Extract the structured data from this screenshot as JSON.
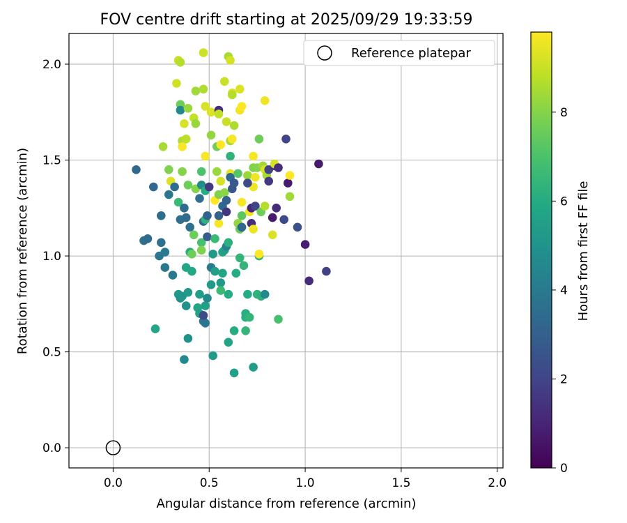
{
  "chart_data": {
    "type": "scatter",
    "title": "FOV centre drift starting at 2025/09/29 19:33:59",
    "xlabel": "Angular distance from reference (arcmin)",
    "ylabel": "Rotation from reference (arcmin)",
    "xlim": [
      -0.23,
      2.03
    ],
    "ylim": [
      -0.105,
      2.16
    ],
    "xticks": [
      0.0,
      0.5,
      1.0,
      1.5,
      2.0
    ],
    "xtick_labels": [
      "0.0",
      "0.5",
      "1.0",
      "1.5",
      "2.0"
    ],
    "yticks": [
      0.0,
      0.5,
      1.0,
      1.5,
      2.0
    ],
    "ytick_labels": [
      "0.0",
      "0.5",
      "1.0",
      "1.5",
      "2.0"
    ],
    "grid": true,
    "legend": {
      "position": "top-right",
      "entries": [
        "Reference platepar"
      ]
    },
    "reference_point": {
      "x": 0.0,
      "y": 0.0,
      "label": "Reference platepar"
    },
    "colorbar": {
      "label": "Hours from first FF file",
      "range": [
        0,
        9.8
      ],
      "ticks": [
        0,
        2,
        4,
        6,
        8
      ],
      "tick_labels": [
        "0",
        "2",
        "4",
        "6",
        "8"
      ],
      "colormap": "viridis"
    },
    "points_columns": [
      "x",
      "y",
      "hours"
    ],
    "points": [
      [
        0.12,
        1.45,
        3.3
      ],
      [
        0.16,
        1.08,
        3.6
      ],
      [
        0.18,
        1.09,
        3.4
      ],
      [
        0.22,
        0.62,
        5.8
      ],
      [
        0.21,
        1.36,
        3.3
      ],
      [
        0.24,
        1.0,
        3.8
      ],
      [
        0.25,
        1.07,
        3.7
      ],
      [
        0.25,
        1.21,
        3.5
      ],
      [
        0.26,
        1.57,
        8.5
      ],
      [
        0.27,
        0.94,
        3.9
      ],
      [
        0.27,
        1.02,
        4.0
      ],
      [
        0.29,
        1.32,
        3.8
      ],
      [
        0.29,
        1.45,
        7.9
      ],
      [
        0.3,
        1.39,
        9.3
      ],
      [
        0.31,
        0.9,
        3.9
      ],
      [
        0.32,
        1.36,
        3.5
      ],
      [
        0.33,
        1.9,
        9.1
      ],
      [
        0.34,
        2.02,
        9.0
      ],
      [
        0.35,
        2.01,
        8.7
      ],
      [
        0.35,
        1.79,
        7.6
      ],
      [
        0.35,
        1.76,
        4.6
      ],
      [
        0.34,
        1.28,
        6.6
      ],
      [
        0.35,
        1.19,
        3.6
      ],
      [
        0.36,
        1.44,
        8.0
      ],
      [
        0.36,
        1.6,
        8.6
      ],
      [
        0.36,
        1.57,
        9.7
      ],
      [
        0.37,
        1.69,
        9.2
      ],
      [
        0.38,
        1.61,
        8.8
      ],
      [
        0.37,
        1.25,
        3.4
      ],
      [
        0.38,
        1.2,
        3.4
      ],
      [
        0.34,
        0.8,
        5.2
      ],
      [
        0.35,
        0.78,
        4.9
      ],
      [
        0.36,
        0.79,
        5.1
      ],
      [
        0.37,
        0.46,
        4.6
      ],
      [
        0.38,
        0.94,
        5.8
      ],
      [
        0.38,
        0.74,
        4.9
      ],
      [
        0.39,
        0.57,
        4.9
      ],
      [
        0.39,
        0.81,
        5.3
      ],
      [
        0.39,
        1.77,
        8.3
      ],
      [
        0.39,
        1.37,
        7.6
      ],
      [
        0.4,
        1.15,
        3.6
      ],
      [
        0.4,
        1.02,
        6.0
      ],
      [
        0.41,
        1.01,
        7.6
      ],
      [
        0.42,
        1.11,
        7.6
      ],
      [
        0.41,
        0.92,
        5.9
      ],
      [
        0.42,
        1.72,
        8.9
      ],
      [
        0.43,
        1.69,
        8.3
      ],
      [
        0.43,
        1.86,
        8.4
      ],
      [
        0.43,
        1.35,
        8.0
      ],
      [
        0.44,
        0.73,
        5.8
      ],
      [
        0.45,
        0.7,
        5.6
      ],
      [
        0.45,
        0.8,
        5.4
      ],
      [
        0.45,
        1.3,
        3.6
      ],
      [
        0.46,
        1.37,
        4.7
      ],
      [
        0.46,
        1.07,
        6.9
      ],
      [
        0.46,
        1.03,
        7.9
      ],
      [
        0.46,
        1.44,
        7.0
      ],
      [
        0.47,
        2.06,
        9.1
      ],
      [
        0.47,
        1.18,
        3.3
      ],
      [
        0.48,
        1.19,
        6.3
      ],
      [
        0.47,
        1.87,
        8.6
      ],
      [
        0.48,
        1.78,
        9.2
      ],
      [
        0.48,
        1.52,
        9.7
      ],
      [
        0.48,
        1.34,
        6.0
      ],
      [
        0.49,
        1.1,
        2.8
      ],
      [
        0.49,
        1.21,
        3.1
      ],
      [
        0.48,
        0.74,
        5.5
      ],
      [
        0.47,
        0.66,
        3.9
      ],
      [
        0.48,
        0.65,
        3.8
      ],
      [
        0.47,
        0.69,
        2.2
      ],
      [
        0.49,
        0.78,
        4.6
      ],
      [
        0.5,
        1.36,
        1.6
      ],
      [
        0.51,
        1.63,
        8.2
      ],
      [
        0.51,
        1.75,
        9.3
      ],
      [
        0.51,
        0.94,
        4.0
      ],
      [
        0.51,
        0.85,
        5.3
      ],
      [
        0.52,
        0.48,
        5.3
      ],
      [
        0.52,
        1.01,
        5.3
      ],
      [
        0.53,
        1.09,
        6.6
      ],
      [
        0.53,
        1.29,
        9.8
      ],
      [
        0.54,
        1.57,
        7.6
      ],
      [
        0.54,
        1.44,
        8.3
      ],
      [
        0.55,
        1.17,
        9.7
      ],
      [
        0.55,
        1.21,
        3.0
      ],
      [
        0.55,
        1.76,
        1.3
      ],
      [
        0.55,
        1.74,
        8.9
      ],
      [
        0.56,
        1.58,
        9.8
      ],
      [
        0.55,
        1.32,
        7.9
      ],
      [
        0.56,
        1.39,
        9.2
      ],
      [
        0.56,
        0.86,
        5.3
      ],
      [
        0.57,
        0.91,
        5.7
      ],
      [
        0.57,
        1.02,
        5.7
      ],
      [
        0.58,
        1.03,
        5.5
      ],
      [
        0.57,
        1.26,
        3.3
      ],
      [
        0.58,
        1.91,
        9.0
      ],
      [
        0.58,
        1.33,
        8.1
      ],
      [
        0.59,
        1.23,
        1.5
      ],
      [
        0.59,
        1.29,
        3.0
      ],
      [
        0.59,
        1.7,
        9.0
      ],
      [
        0.59,
        1.05,
        4.3
      ],
      [
        0.6,
        0.55,
        5.7
      ],
      [
        0.6,
        0.8,
        6.0
      ],
      [
        0.6,
        1.07,
        6.2
      ],
      [
        0.6,
        2.04,
        8.5
      ],
      [
        0.61,
        2.02,
        9.2
      ],
      [
        0.61,
        1.43,
        9.4
      ],
      [
        0.61,
        1.6,
        8.5
      ],
      [
        0.61,
        1.52,
        6.3
      ],
      [
        0.61,
        1.41,
        3.3
      ],
      [
        0.62,
        1.85,
        9.2
      ],
      [
        0.62,
        1.61,
        9.7
      ],
      [
        0.62,
        1.35,
        2.6
      ],
      [
        0.62,
        1.84,
        8.7
      ],
      [
        0.63,
        1.68,
        8.6
      ],
      [
        0.63,
        1.38,
        2.8
      ],
      [
        0.63,
        0.61,
        6.0
      ],
      [
        0.63,
        0.39,
        5.5
      ],
      [
        0.64,
        0.91,
        6.0
      ],
      [
        0.65,
        1.43,
        7.2
      ],
      [
        0.65,
        1.17,
        8.2
      ],
      [
        0.66,
        1.87,
        9.3
      ],
      [
        0.66,
        1.76,
        9.6
      ],
      [
        0.66,
        0.99,
        6.4
      ],
      [
        0.67,
        1.78,
        9.8
      ],
      [
        0.66,
        1.14,
        7.4
      ],
      [
        0.67,
        1.15,
        3.3
      ],
      [
        0.67,
        1.21,
        7.3
      ],
      [
        0.67,
        1.28,
        9.7
      ],
      [
        0.68,
        0.95,
        6.4
      ],
      [
        0.69,
        0.61,
        6.4
      ],
      [
        0.69,
        0.7,
        6.1
      ],
      [
        0.69,
        0.68,
        6.1
      ],
      [
        0.7,
        0.8,
        6.0
      ],
      [
        0.7,
        1.42,
        8.3
      ],
      [
        0.71,
        1.23,
        9.6
      ],
      [
        0.71,
        0.68,
        6.4
      ],
      [
        0.72,
        1.17,
        1.3
      ],
      [
        0.72,
        1.25,
        1.0
      ],
      [
        0.73,
        1.46,
        7.9
      ],
      [
        0.73,
        1.52,
        9.7
      ],
      [
        0.73,
        1.36,
        9.6
      ],
      [
        0.73,
        0.42,
        5.4
      ],
      [
        0.73,
        1.14,
        9.6
      ],
      [
        0.74,
        1.41,
        9.6
      ],
      [
        0.75,
        0.8,
        6.3
      ],
      [
        0.74,
        1.26,
        2.0
      ],
      [
        0.75,
        1.46,
        8.0
      ],
      [
        0.76,
        1.61,
        7.6
      ],
      [
        0.76,
        1.0,
        6.4
      ],
      [
        0.76,
        1.01,
        9.8
      ],
      [
        0.77,
        0.79,
        6.2
      ],
      [
        0.77,
        1.23,
        7.6
      ],
      [
        0.78,
        1.47,
        8.4
      ],
      [
        0.79,
        1.81,
        9.6
      ],
      [
        0.79,
        1.45,
        9.3
      ],
      [
        0.79,
        1.26,
        8.7
      ],
      [
        0.79,
        0.8,
        4.6
      ],
      [
        0.8,
        1.42,
        8.5
      ],
      [
        0.81,
        1.45,
        2.0
      ],
      [
        0.81,
        1.39,
        1.6
      ],
      [
        0.83,
        1.2,
        0.7
      ],
      [
        0.83,
        1.11,
        9.3
      ],
      [
        0.84,
        1.47,
        1.3
      ],
      [
        0.84,
        1.48,
        9.2
      ],
      [
        0.85,
        1.25,
        1.2
      ],
      [
        0.86,
        0.67,
        6.9
      ],
      [
        0.86,
        1.46,
        1.3
      ],
      [
        0.89,
        1.19,
        2.2
      ],
      [
        0.9,
        1.61,
        2.0
      ],
      [
        0.91,
        1.38,
        0.7
      ],
      [
        0.92,
        1.42,
        9.8
      ],
      [
        0.92,
        1.31,
        8.4
      ],
      [
        0.96,
        1.15,
        2.4
      ],
      [
        1.0,
        1.06,
        0.8
      ],
      [
        1.02,
        0.87,
        1.2
      ],
      [
        1.07,
        1.48,
        0.7
      ],
      [
        1.11,
        0.92,
        1.9
      ],
      [
        0.7,
        1.38,
        2.2
      ],
      [
        0.53,
        0.92,
        5.5
      ],
      [
        0.56,
        0.82,
        6.6
      ]
    ]
  }
}
